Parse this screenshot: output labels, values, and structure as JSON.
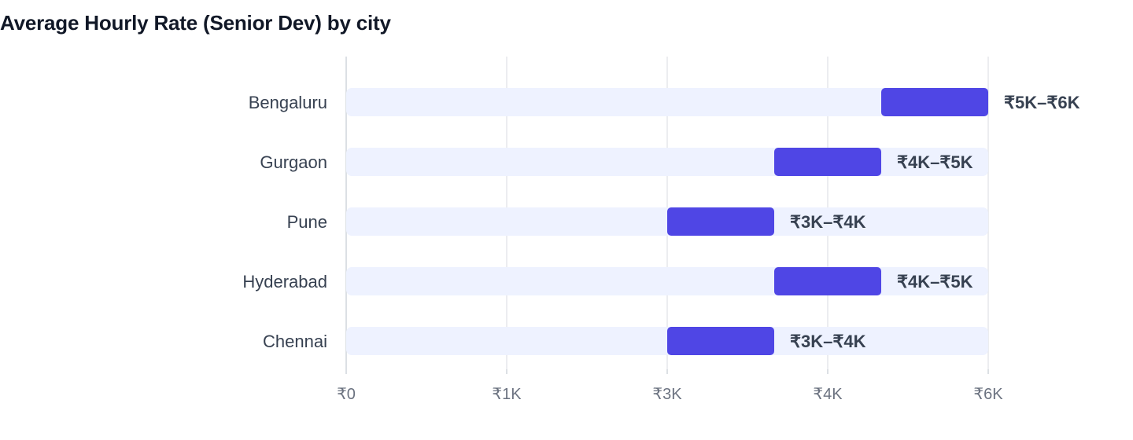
{
  "title": "Average Hourly Rate (Senior Dev) by city",
  "chart_data": {
    "type": "bar",
    "orientation": "horizontal",
    "subtype": "floating-range",
    "title": "Average Hourly Rate (Senior Dev) by city",
    "xlabel": "",
    "ylabel": "",
    "xlim": [
      0,
      6000
    ],
    "grid": true,
    "categories": [
      "Bengaluru",
      "Gurgaon",
      "Pune",
      "Hyderabad",
      "Chennai"
    ],
    "ranges": [
      {
        "low": 5000,
        "high": 6000,
        "label": "₹5K–₹6K"
      },
      {
        "low": 4000,
        "high": 5000,
        "label": "₹4K–₹5K"
      },
      {
        "low": 3000,
        "high": 4000,
        "label": "₹3K–₹4K"
      },
      {
        "low": 4000,
        "high": 5000,
        "label": "₹4K–₹5K"
      },
      {
        "low": 3000,
        "high": 4000,
        "label": "₹3K–₹4K"
      }
    ],
    "ticks": [
      "₹0",
      "₹1K",
      "₹3K",
      "₹4K",
      "₹6K"
    ],
    "colors": {
      "bar": "#4F46E5",
      "track": "#EEF2FF",
      "grid": "#E5E7EB",
      "axis": "#D1D5DB",
      "tick_text": "#6B7280",
      "label_text": "#374151",
      "value_text": "#374151"
    }
  }
}
